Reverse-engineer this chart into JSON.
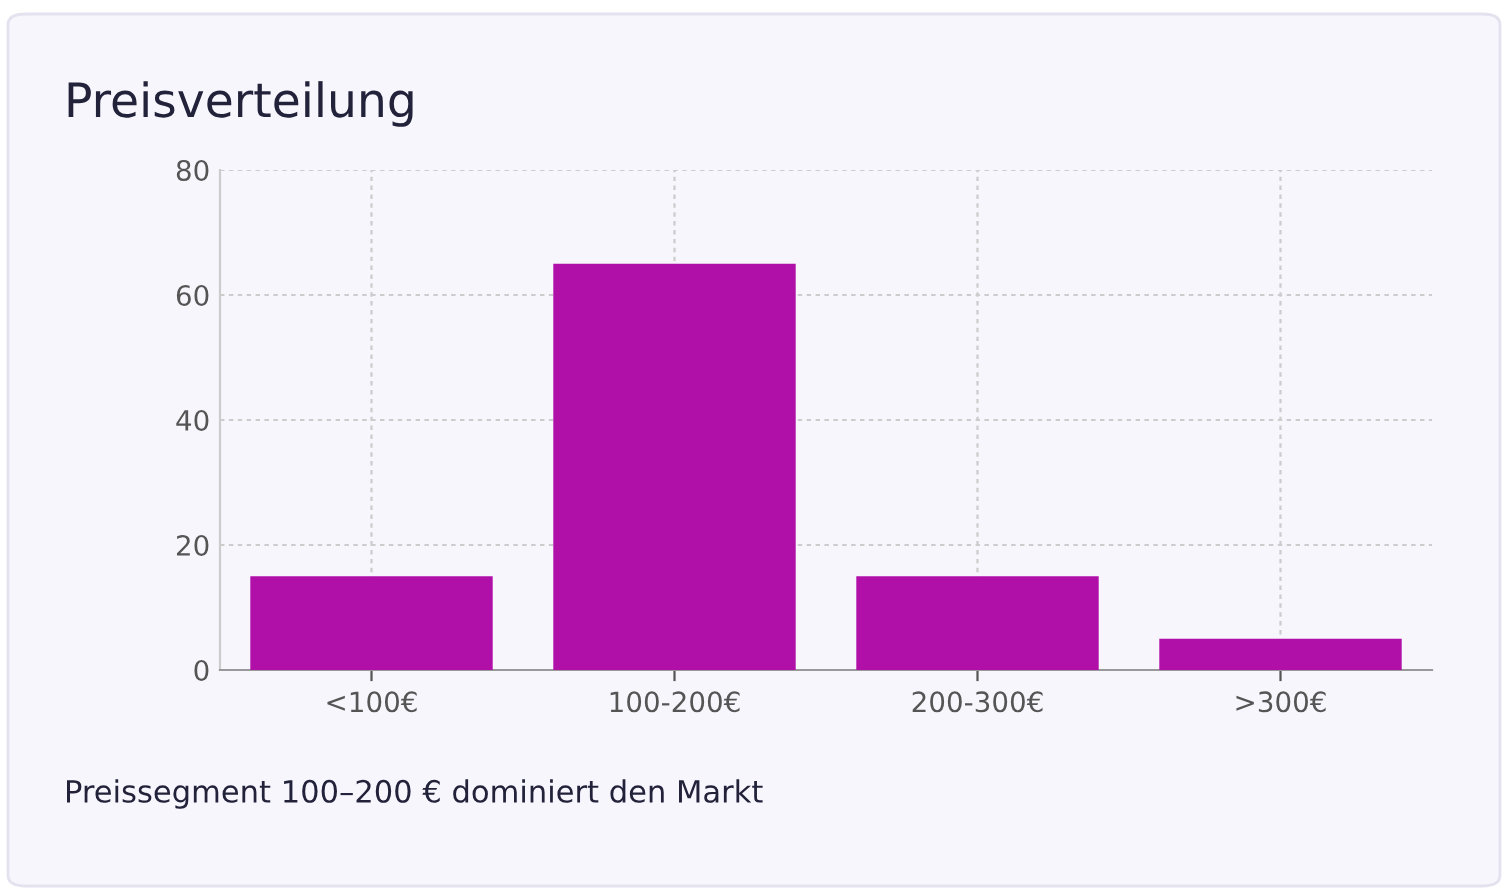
{
  "chart_data": {
    "type": "bar",
    "title": "Preisverteilung",
    "categories": [
      "<100€",
      "100-200€",
      "200-300€",
      ">300€"
    ],
    "values": [
      15,
      65,
      15,
      5
    ],
    "color": "#b010a8",
    "ylim": [
      0,
      80
    ],
    "yticks": [
      0,
      20,
      40,
      60,
      80
    ],
    "grid": true,
    "annotations": [
      "Preissegment 100–200 € dominiert den Markt"
    ]
  }
}
